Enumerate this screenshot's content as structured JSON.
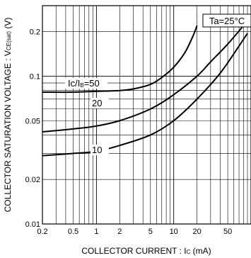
{
  "chart_data": {
    "type": "line",
    "xlabel": "COLLECTOR CURRENT : Ic (mA)",
    "ylabel": "COLLECTOR SATURATION VOLTAGE : VCE(sat) (V)",
    "x_scale": "log",
    "y_scale": "log",
    "xlim": [
      0.2,
      100
    ],
    "ylim": [
      0.01,
      0.3
    ],
    "grid": true,
    "x_ticks": [
      "0.2",
      "0.5",
      "1",
      "2",
      "5",
      "10",
      "20",
      "50"
    ],
    "y_ticks": [
      "0.01",
      "0.02",
      "0.05",
      "0.1",
      "0.2"
    ],
    "annotations": [
      "Ta=25°C"
    ],
    "series": [
      {
        "name": "Ic/IB=50",
        "x": [
          0.2,
          0.5,
          1,
          2,
          3,
          5,
          7,
          10,
          14,
          18,
          20
        ],
        "y": [
          0.078,
          0.078,
          0.079,
          0.08,
          0.082,
          0.088,
          0.098,
          0.115,
          0.145,
          0.19,
          0.22
        ]
      },
      {
        "name": "20",
        "x": [
          0.2,
          0.5,
          1,
          2,
          5,
          10,
          20,
          30,
          50,
          80
        ],
        "y": [
          0.042,
          0.044,
          0.046,
          0.05,
          0.06,
          0.075,
          0.1,
          0.125,
          0.165,
          0.22
        ]
      },
      {
        "name": "10",
        "x": [
          0.2,
          0.5,
          1,
          2,
          5,
          10,
          20,
          40,
          70,
          90
        ],
        "y": [
          0.029,
          0.03,
          0.031,
          0.034,
          0.04,
          0.05,
          0.07,
          0.105,
          0.16,
          0.195
        ]
      }
    ]
  }
}
